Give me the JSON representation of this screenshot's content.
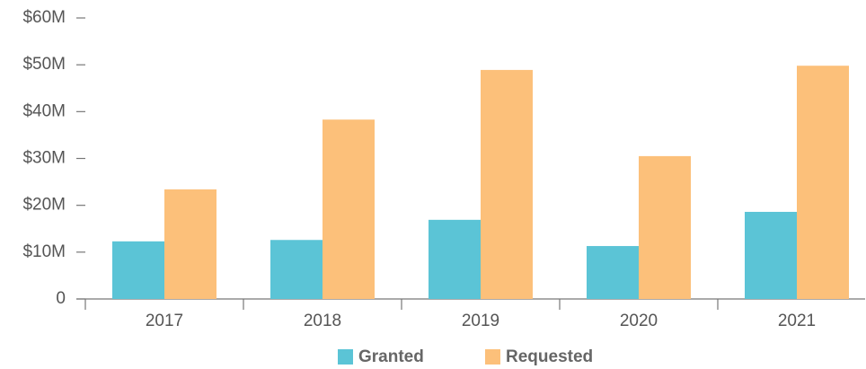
{
  "chart_data": {
    "type": "bar",
    "categories": [
      "2017",
      "2018",
      "2019",
      "2020",
      "2021"
    ],
    "series": [
      {
        "name": "Granted",
        "color": "#5bc4d6",
        "values": [
          12.3,
          12.6,
          16.9,
          11.3,
          18.6
        ]
      },
      {
        "name": "Requested",
        "color": "#fcc07a",
        "values": [
          23.4,
          38.3,
          48.9,
          30.5,
          49.8
        ]
      }
    ],
    "ylim": [
      0,
      60
    ],
    "yticks": [
      0,
      {
        "value": 10,
        "label": "$10M"
      },
      {
        "value": 20,
        "label": "$20M"
      },
      {
        "value": 30,
        "label": "$30M"
      },
      {
        "value": 40,
        "label": "$40M"
      },
      {
        "value": 50,
        "label": "$50M"
      },
      {
        "value": 60,
        "label": "$60M"
      }
    ],
    "grid": false,
    "legend": "bottom"
  }
}
